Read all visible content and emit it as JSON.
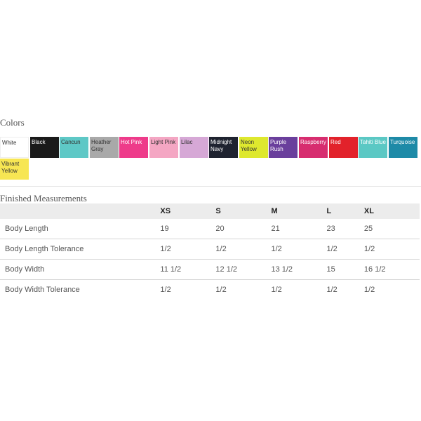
{
  "colors_section": {
    "title": "Colors",
    "swatches": [
      {
        "label": "White",
        "hex": "#ffffff"
      },
      {
        "label": "Black",
        "hex": "#1a1a1a"
      },
      {
        "label": "Cancun",
        "hex": "#5ec8c6"
      },
      {
        "label": "Heather Gray",
        "hex": "#a9a9a9"
      },
      {
        "label": "Hot Pink",
        "hex": "#ee3b8a"
      },
      {
        "label": "Light Pink",
        "hex": "#f4a6c3"
      },
      {
        "label": "Lilac",
        "hex": "#d6a8d6"
      },
      {
        "label": "Midnight Navy",
        "hex": "#1f2330"
      },
      {
        "label": "Neon Yellow",
        "hex": "#dee82e"
      },
      {
        "label": "Purple Rush",
        "hex": "#6a3f9c"
      },
      {
        "label": "Raspberry",
        "hex": "#d72d6f"
      },
      {
        "label": "Red",
        "hex": "#e2222b"
      },
      {
        "label": "Tahiti Blue",
        "hex": "#5bc8c4"
      },
      {
        "label": "Turquoise",
        "hex": "#1e8aa7"
      },
      {
        "label": "Vibrant Yellow",
        "hex": "#f7e653"
      }
    ]
  },
  "measurements_section": {
    "title": "Finished Measurements",
    "headers": [
      "",
      "XS",
      "S",
      "M",
      "L",
      "XL"
    ],
    "rows": [
      {
        "label": "Body Length",
        "values": [
          "19",
          "20",
          "21",
          "23",
          "25"
        ]
      },
      {
        "label": "Body Length Tolerance",
        "values": [
          "1/2",
          "1/2",
          "1/2",
          "1/2",
          "1/2"
        ]
      },
      {
        "label": "Body Width",
        "values": [
          "11 1/2",
          "12 1/2",
          "13 1/2",
          "15",
          "16 1/2"
        ]
      },
      {
        "label": "Body Width Tolerance",
        "values": [
          "1/2",
          "1/2",
          "1/2",
          "1/2",
          "1/2"
        ]
      }
    ]
  }
}
